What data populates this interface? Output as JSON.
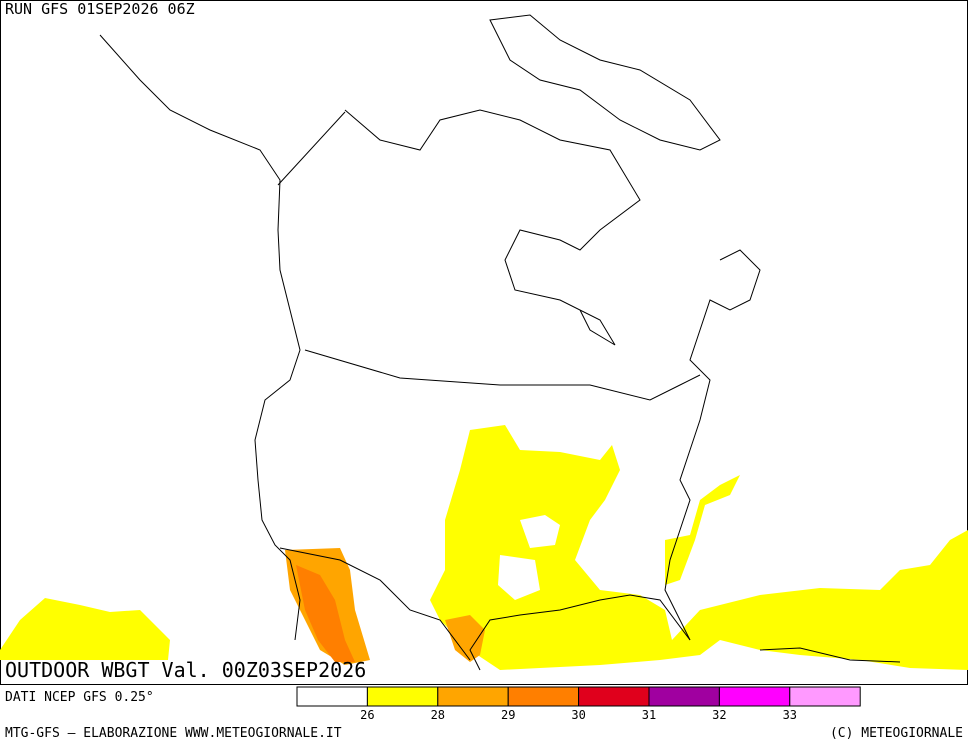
{
  "header": {
    "run": "RUN GFS 01SEP2026 06Z"
  },
  "map": {
    "field": "OUTDOOR WBGT Val. 00Z03SEP2026"
  },
  "legend": {
    "source": "DATI NCEP GFS 0.25°",
    "colors": [
      "#ffffff",
      "#ffff00",
      "#ffa500",
      "#ff7f00",
      "#e0001c",
      "#a000a0",
      "#ff00ff",
      "#ff99ff"
    ],
    "ticks": [
      26,
      28,
      29,
      30,
      31,
      32,
      33
    ]
  },
  "footer": {
    "left": "MTG-GFS — ELABORAZIONE WWW.METEOGIORNALE.IT",
    "right": "(C) METEOGIORNALE"
  }
}
